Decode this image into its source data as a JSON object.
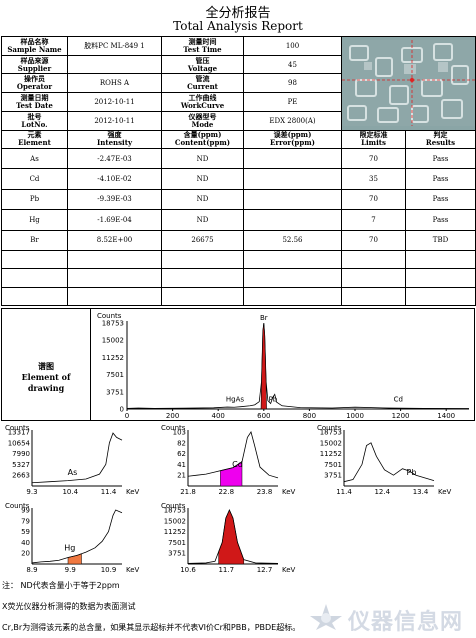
{
  "header": {
    "title_cn": "全分析报告",
    "title_en": "Total Analysis Report"
  },
  "info_rows": [
    {
      "l1_cn": "样品名称",
      "l1_en": "Sample Name",
      "v1": "胶料PC ML-849 1",
      "l2_cn": "测量时间",
      "l2_en": "Test Time",
      "v2": "100"
    },
    {
      "l1_cn": "样品来源",
      "l1_en": "Supplier",
      "v1": "",
      "l2_cn": "管压",
      "l2_en": "Voltage",
      "v2": "45"
    },
    {
      "l1_cn": "操作员",
      "l1_en": "Operator",
      "v1": "ROHS A",
      "l2_cn": "管流",
      "l2_en": "Current",
      "v2": "98"
    },
    {
      "l1_cn": "测量日期",
      "l1_en": "Test Date",
      "v1": "2012-10-11",
      "l2_cn": "工作曲线",
      "l2_en": "WorkCurve",
      "v2": "PE"
    },
    {
      "l1_cn": "批号",
      "l1_en": "LotNo.",
      "v1": "2012-10-11",
      "l2_cn": "仪器型号",
      "l2_en": "Mode",
      "v2": "EDX 2800(A)"
    }
  ],
  "result_header": [
    {
      "cn": "元素",
      "en": "Element"
    },
    {
      "cn": "强度",
      "en": "Intensity"
    },
    {
      "cn": "含量(ppm)",
      "en": "Content(ppm)"
    },
    {
      "cn": "误差(ppm)",
      "en": "Error(ppm)"
    },
    {
      "cn": "限定标准",
      "en": "Limits"
    },
    {
      "cn": "判定",
      "en": "Results"
    }
  ],
  "results": [
    {
      "element": "As",
      "intensity": "-2.47E-03",
      "content": "ND",
      "error": "",
      "limit": "70",
      "result": "Pass"
    },
    {
      "element": "Cd",
      "intensity": "-4.10E-02",
      "content": "ND",
      "error": "",
      "limit": "35",
      "result": "Pass"
    },
    {
      "element": "Pb",
      "intensity": "-9.39E-03",
      "content": "ND",
      "error": "",
      "limit": "70",
      "result": "Pass"
    },
    {
      "element": "Hg",
      "intensity": "-1.69E-04",
      "content": "ND",
      "error": "",
      "limit": "7",
      "result": "Pass"
    },
    {
      "element": "Br",
      "intensity": "8.52E+00",
      "content": "26675",
      "error": "52.56",
      "limit": "70",
      "result": "TBD"
    }
  ],
  "spectrum_label": {
    "cn": "谱图",
    "en1": "Element of",
    "en2": "drawing"
  },
  "chart_data": [
    {
      "type": "line",
      "ylabel": "Counts",
      "xlim": [
        0,
        1500
      ],
      "ylim": [
        0,
        18753
      ],
      "xticks": [
        "0",
        "200",
        "400",
        "600",
        "800",
        "1000",
        "1200",
        "1400"
      ],
      "yticks": [
        "3751",
        "7501",
        "11252",
        "15002",
        "18753"
      ],
      "peak_labels": [
        {
          "text": "Br",
          "x": 600,
          "y": 18753
        },
        {
          "text": "Hg",
          "x": 455,
          "y": 1200
        },
        {
          "text": "As",
          "x": 495,
          "y": 1200
        },
        {
          "text": "Pb",
          "x": 640,
          "y": 1200
        },
        {
          "text": "Cd",
          "x": 1190,
          "y": 1200
        }
      ]
    },
    {
      "type": "line",
      "ylabel": "Counts",
      "xlabel": "KeV",
      "element": "As",
      "xlim": [
        9.3,
        12.0
      ],
      "ylim": [
        0,
        13317
      ],
      "xticks": [
        "9.3",
        "10.4",
        "11.4"
      ],
      "yticks": [
        "2663",
        "5327",
        "7990",
        "10654",
        "13317"
      ]
    },
    {
      "type": "line",
      "ylabel": "Counts",
      "xlabel": "KeV",
      "element": "Cd",
      "xlim": [
        21.8,
        24.5
      ],
      "ylim": [
        0,
        103
      ],
      "xticks": [
        "21.8",
        "22.8",
        "23.8"
      ],
      "yticks": [
        "21",
        "41",
        "62",
        "82",
        "103"
      ]
    },
    {
      "type": "line",
      "ylabel": "Counts",
      "xlabel": "KeV",
      "element": "Pb",
      "xlim": [
        10.8,
        13.7
      ],
      "ylim": [
        0,
        18753
      ],
      "xticks": [
        "11.4",
        "12.4",
        "13.4"
      ],
      "yticks": [
        "3751",
        "7501",
        "11252",
        "15002",
        "18753"
      ]
    },
    {
      "type": "line",
      "ylabel": "Counts",
      "xlabel": "KeV",
      "element": "Hg",
      "xlim": [
        8.9,
        11.3
      ],
      "ylim": [
        0,
        99
      ],
      "xticks": [
        "8.9",
        "9.9",
        "10.9"
      ],
      "yticks": [
        "20",
        "40",
        "59",
        "79",
        "99"
      ]
    },
    {
      "type": "line",
      "ylabel": "Counts",
      "xlabel": "KeV",
      "element": "",
      "xlim": [
        10.6,
        13.3
      ],
      "ylim": [
        0,
        18753
      ],
      "xticks": [
        "10.6",
        "11.7",
        "12.7"
      ],
      "yticks": [
        "3751",
        "7501",
        "11252",
        "15002",
        "18753"
      ]
    }
  ],
  "notes": {
    "line1": "注：  ND代表含量小于等于2ppm",
    "line2": "X荧光仪器分析测得的数据为表面测试",
    "line3": "Cr,Br为测得该元素的总含量，如果其显示超标并不代表VI价Cr和PBB，PBDE超标。"
  },
  "watermark": "仪器信息网",
  "colors": {
    "br_peak": "#d01818",
    "cd_roi": "#ee00ee",
    "hg_roi": "#f07840",
    "photo": "#8aa5a6",
    "crosshair": "#e02020"
  }
}
